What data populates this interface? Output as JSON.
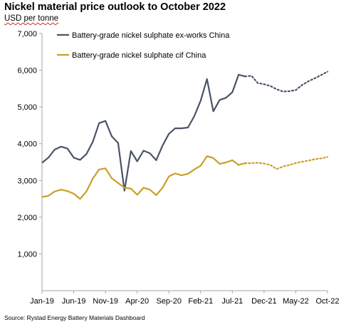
{
  "chart_data": {
    "type": "line",
    "title": "Nickel material price outlook to October 2022",
    "ylabel": "USD per tonne",
    "ylim": [
      0,
      7000
    ],
    "yticks": [
      1000,
      2000,
      3000,
      4000,
      5000,
      6000,
      7000
    ],
    "ytick_labels": [
      "1,000",
      "2,000",
      "3,000",
      "4,000",
      "5,000",
      "6,000",
      "7,000"
    ],
    "xtick_labels": [
      "Jan-19",
      "Jun-19",
      "Nov-19",
      "Apr-20",
      "Sep-20",
      "Feb-21",
      "Jul-21",
      "Dec-21",
      "May-22",
      "Oct-22"
    ],
    "x_start": "2019-01",
    "x_end": "2022-10",
    "legend_position": "top-left",
    "grid": false,
    "series": [
      {
        "name": "Battery-grade nickel sulphate ex-works China",
        "color": "#4a5465",
        "actual": {
          "x": [
            "2019-01",
            "2019-02",
            "2019-03",
            "2019-04",
            "2019-05",
            "2019-06",
            "2019-07",
            "2019-08",
            "2019-09",
            "2019-10",
            "2019-11",
            "2019-12",
            "2020-01",
            "2020-02",
            "2020-03",
            "2020-04",
            "2020-05",
            "2020-06",
            "2020-07",
            "2020-08",
            "2020-09",
            "2020-10",
            "2020-11",
            "2020-12",
            "2021-01",
            "2021-02",
            "2021-03",
            "2021-04",
            "2021-05",
            "2021-06",
            "2021-07",
            "2021-08",
            "2021-09"
          ],
          "y": [
            3480,
            3620,
            3840,
            3920,
            3870,
            3620,
            3560,
            3720,
            4050,
            4560,
            4620,
            4200,
            4020,
            2720,
            3800,
            3520,
            3810,
            3740,
            3550,
            3950,
            4270,
            4420,
            4420,
            4440,
            4750,
            5170,
            5760,
            4880,
            5190,
            5250,
            5400,
            5880,
            5830
          ]
        },
        "forecast": {
          "x": [
            "2021-10",
            "2021-11",
            "2021-12",
            "2022-01",
            "2022-02",
            "2022-03",
            "2022-04",
            "2022-05",
            "2022-06",
            "2022-07",
            "2022-08",
            "2022-09",
            "2022-10"
          ],
          "y": [
            5850,
            5650,
            5620,
            5570,
            5480,
            5420,
            5430,
            5460,
            5600,
            5700,
            5780,
            5870,
            5960
          ]
        }
      },
      {
        "name": "Battery-grade nickel sulphate cif China",
        "color": "#c8a026",
        "actual": {
          "x": [
            "2019-01",
            "2019-02",
            "2019-03",
            "2019-04",
            "2019-05",
            "2019-06",
            "2019-07",
            "2019-08",
            "2019-09",
            "2019-10",
            "2019-11",
            "2019-12",
            "2020-01",
            "2020-02",
            "2020-03",
            "2020-04",
            "2020-05",
            "2020-06",
            "2020-07",
            "2020-08",
            "2020-09",
            "2020-10",
            "2020-11",
            "2020-12",
            "2021-01",
            "2021-02",
            "2021-03",
            "2021-04",
            "2021-05",
            "2021-06",
            "2021-07",
            "2021-08",
            "2021-09"
          ],
          "y": [
            2550,
            2580,
            2700,
            2750,
            2710,
            2640,
            2500,
            2700,
            3050,
            3300,
            3330,
            3060,
            2930,
            2800,
            2780,
            2610,
            2800,
            2750,
            2600,
            2800,
            3110,
            3190,
            3140,
            3180,
            3300,
            3400,
            3660,
            3610,
            3450,
            3490,
            3550,
            3420,
            3470
          ]
        },
        "forecast": {
          "x": [
            "2021-10",
            "2021-11",
            "2021-12",
            "2022-01",
            "2022-02",
            "2022-03",
            "2022-04",
            "2022-05",
            "2022-06",
            "2022-07",
            "2022-08",
            "2022-09",
            "2022-10"
          ],
          "y": [
            3470,
            3480,
            3460,
            3420,
            3310,
            3380,
            3420,
            3470,
            3510,
            3540,
            3580,
            3600,
            3640
          ]
        }
      }
    ]
  },
  "source": "Source: Rystad Energy Battery Materials Dashboard"
}
